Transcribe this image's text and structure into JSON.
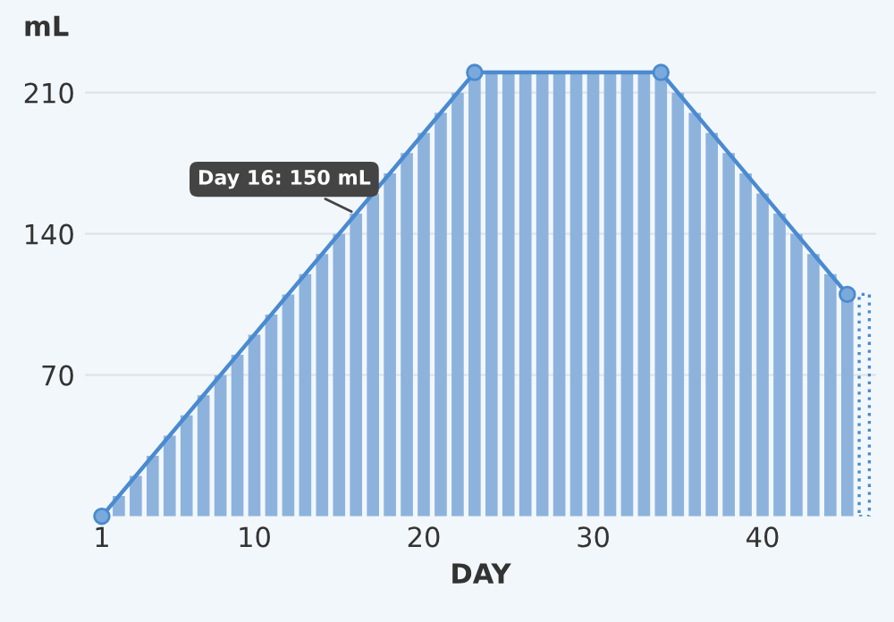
{
  "chart_data": {
    "type": "bar",
    "xlabel": "DAY",
    "ylabel": "mL",
    "annotations": [
      {
        "text": "Day 16: 150 mL",
        "x": 16,
        "y": 150
      }
    ],
    "series": [
      {
        "color": "#8db3dd",
        "x": [
          1,
          2,
          3,
          4,
          5,
          6,
          7,
          8,
          9,
          10,
          11,
          12,
          13,
          14,
          15,
          16,
          17,
          18,
          19,
          20,
          21,
          22,
          23,
          24,
          25,
          26,
          27,
          28,
          29,
          30,
          31,
          32,
          33,
          34,
          35,
          36,
          37,
          38,
          39,
          40,
          41,
          42,
          43,
          44,
          45
        ],
        "values": [
          0,
          10,
          20,
          30,
          40,
          50,
          60,
          70,
          80,
          90,
          100,
          110,
          120,
          130,
          140,
          150,
          160,
          170,
          180,
          190,
          200,
          210,
          220,
          220,
          220,
          220,
          220,
          220,
          220,
          220,
          220,
          220,
          220,
          220,
          210,
          200,
          190,
          180,
          170,
          160,
          150,
          140,
          130,
          120,
          110
        ]
      },
      {
        "type": "bar",
        "color": "#4a8ad0",
        "line_style": "dotted",
        "x": [
          46
        ],
        "values": [
          110
        ]
      },
      {
        "type": "line",
        "color": "#4a8ad0",
        "marker": "circle",
        "x": [
          1,
          23,
          34,
          45
        ],
        "values": [
          0,
          220,
          220,
          110
        ]
      }
    ],
    "xlim": [
      0,
      46.7
    ],
    "xticks": [
      1,
      10,
      20,
      30,
      40
    ],
    "ylim": [
      0,
      222
    ],
    "yticks": [
      70,
      140,
      210
    ],
    "grid": "y"
  }
}
